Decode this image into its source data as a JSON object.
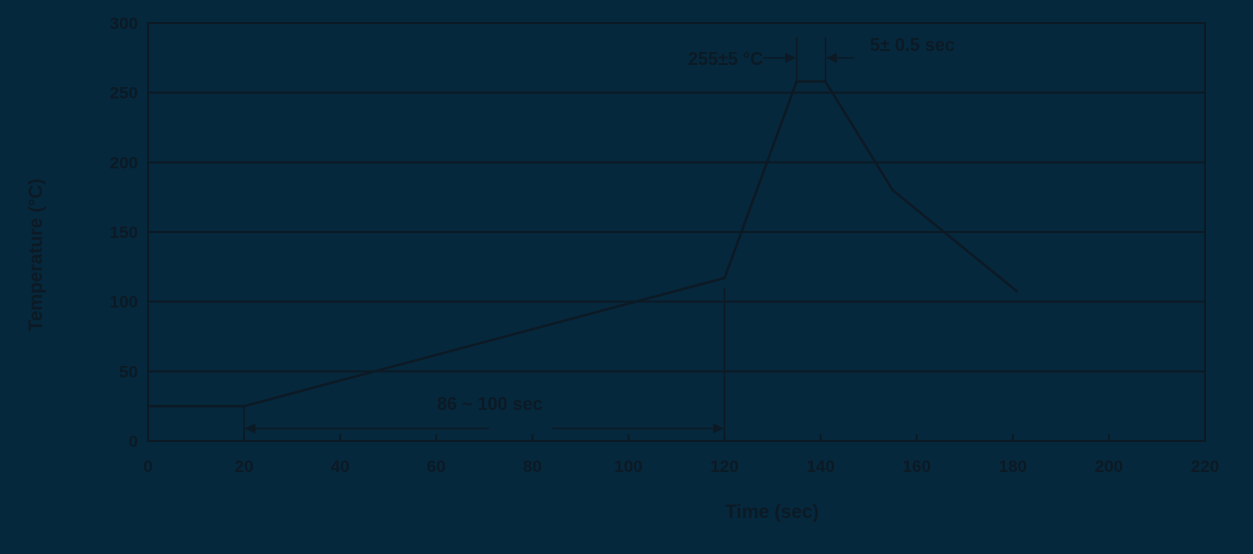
{
  "chart_data": {
    "type": "line",
    "title": "",
    "xlabel": "Time  (sec)",
    "ylabel": "Temperature (°C)",
    "xlim": [
      0,
      220
    ],
    "ylim": [
      0,
      300
    ],
    "xticks": [
      0,
      20,
      40,
      60,
      80,
      100,
      120,
      140,
      160,
      180,
      200,
      220
    ],
    "yticks": [
      0,
      50,
      100,
      150,
      200,
      250,
      300
    ],
    "xtick_labels": [
      "0",
      "20",
      "40",
      "60",
      "80",
      "100",
      "120",
      "140",
      "160",
      "180",
      "200",
      "220"
    ],
    "ytick_labels": [
      "0",
      "50",
      "100",
      "150",
      "200",
      "250",
      "300"
    ],
    "grid": "horizontal",
    "series": [
      {
        "x": [
          0,
          20,
          120,
          135,
          141,
          155,
          181
        ],
        "y": [
          25,
          25,
          117,
          258,
          258,
          180,
          107
        ]
      }
    ],
    "annotations": {
      "peak_temp": "255±5 °C",
      "peak_time": "5± 0.5 sec",
      "preheat_time": "86 ~ 100 sec"
    }
  },
  "colors": {
    "background": "#06283d",
    "ink": "#0c1a26"
  }
}
